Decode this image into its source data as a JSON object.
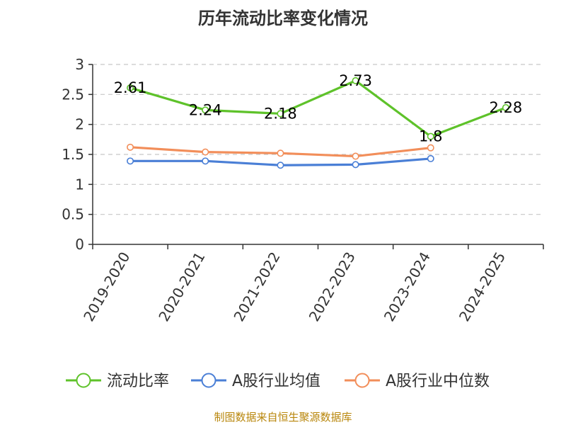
{
  "title": "历年流动比率变化情况",
  "source": "制图数据来自恒生聚源数据库",
  "chart_data": {
    "type": "line",
    "title": "历年流动比率变化情况",
    "categories": [
      "2019-2020",
      "2020-2021",
      "2021-2022",
      "2022-2023",
      "2023-2024",
      "2024-2025"
    ],
    "ylim": [
      0,
      3
    ],
    "yticks": [
      0,
      0.5,
      1,
      1.5,
      2,
      2.5,
      3
    ],
    "grid": true,
    "legend_position": "bottom",
    "series": [
      {
        "name": "流动比率",
        "color": "#5ec22a",
        "values": [
          2.61,
          2.24,
          2.18,
          2.73,
          1.8,
          2.28
        ],
        "labels": [
          "2.61",
          "2.24",
          "2.18",
          "2.73",
          "1.8",
          "2.28"
        ]
      },
      {
        "name": "A股行业均值",
        "color": "#4a7fd6",
        "values": [
          1.39,
          1.39,
          1.32,
          1.33,
          1.43,
          null
        ]
      },
      {
        "name": "A股行业中位数",
        "color": "#f28e5a",
        "values": [
          1.62,
          1.54,
          1.52,
          1.47,
          1.61,
          null
        ]
      }
    ]
  }
}
